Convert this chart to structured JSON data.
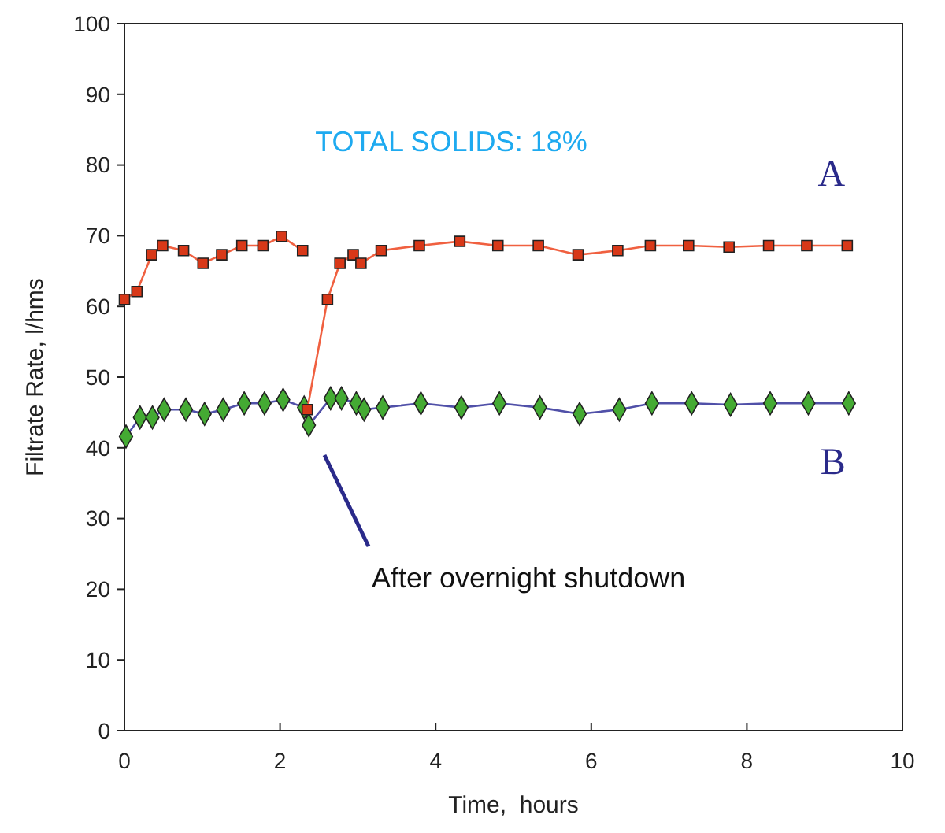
{
  "chart_data": {
    "type": "line",
    "xlabel": "Time,  hours",
    "ylabel": "Filtrate Rate, l/hms",
    "xlim": [
      0,
      10
    ],
    "xticks": [
      0,
      2,
      4,
      6,
      8,
      10
    ],
    "ylim": [
      0,
      100
    ],
    "yticks": [
      0,
      10,
      20,
      30,
      40,
      50,
      60,
      70,
      80,
      90,
      100
    ],
    "grid": false,
    "annotations": [
      "TOTAL SOLIDS: 18%",
      "After overnight shutdown"
    ],
    "series": [
      {
        "name": "A",
        "color": "#f06040",
        "marker": "square",
        "colors": [
          "#d83818",
          "#d83818",
          "#d83818",
          "#d83818",
          "#d83818",
          "#d83818",
          "#d83818",
          "#d83818",
          "#d83818",
          "#d83818",
          "#d83818",
          null,
          "#d83818",
          "#d83818",
          "#d83818",
          "#d83818",
          "#d83818",
          "#d83818",
          "#d83818",
          "#d83818",
          "#d83818",
          "#d83818",
          "#d83818",
          "#d83818",
          "#d83818",
          "#d83818",
          "#d83818",
          "#d83818",
          "#d83818",
          "#d83818"
        ],
        "x": [
          0,
          0.16,
          0.35,
          0.49,
          0.76,
          1.01,
          1.25,
          1.51,
          1.78,
          2.02,
          2.29,
          2.3,
          2.35,
          2.61,
          2.77,
          2.94,
          3.04,
          3.3,
          3.79,
          4.31,
          4.8,
          5.32,
          5.83,
          6.34,
          6.76,
          7.25,
          7.77,
          8.28,
          8.77,
          9.29
        ],
        "values": [
          61,
          62.1,
          67.3,
          68.6,
          67.9,
          66.1,
          67.3,
          68.6,
          68.6,
          69.9,
          67.9,
          null,
          45.4,
          61,
          66.1,
          67.3,
          66.1,
          67.9,
          68.6,
          69.2,
          68.6,
          68.6,
          67.3,
          67.9,
          68.6,
          68.6,
          68.4,
          68.6,
          68.6,
          68.6
        ]
      },
      {
        "name": "B",
        "color": "#5050a8",
        "marker": "diamond",
        "colors": [
          "#44aa33",
          "#44aa33",
          "#44aa33",
          "#44aa33",
          "#44aa33",
          "#44aa33",
          "#44aa33",
          "#44aa33",
          "#44aa33",
          "#44aa33",
          "#44aa33",
          "#44aa33",
          "#44aa33",
          "#44aa33",
          "#44aa33",
          "#44aa33",
          "#44aa33",
          "#44aa33",
          "#44aa33",
          "#44aa33",
          "#44aa33",
          "#44aa33",
          "#44aa33",
          "#44aa33",
          "#44aa33",
          "#44aa33",
          "#44aa33",
          "#44aa33",
          "#44aa33"
        ],
        "x": [
          0.02,
          0.2,
          0.36,
          0.51,
          0.79,
          1.03,
          1.27,
          1.54,
          1.8,
          2.04,
          2.31,
          2.37,
          2.65,
          2.79,
          2.98,
          3.08,
          3.32,
          3.81,
          4.33,
          4.82,
          5.34,
          5.85,
          6.36,
          6.78,
          7.29,
          7.79,
          8.3,
          8.79,
          9.31
        ],
        "values": [
          41.6,
          44.3,
          44.3,
          45.4,
          45.4,
          44.8,
          45.4,
          46.3,
          46.3,
          46.8,
          45.7,
          43.2,
          47,
          47,
          46.3,
          45.4,
          45.7,
          46.3,
          45.7,
          46.3,
          45.7,
          44.8,
          45.4,
          46.3,
          46.3,
          46.1,
          46.3,
          46.3,
          46.3
        ]
      }
    ]
  }
}
